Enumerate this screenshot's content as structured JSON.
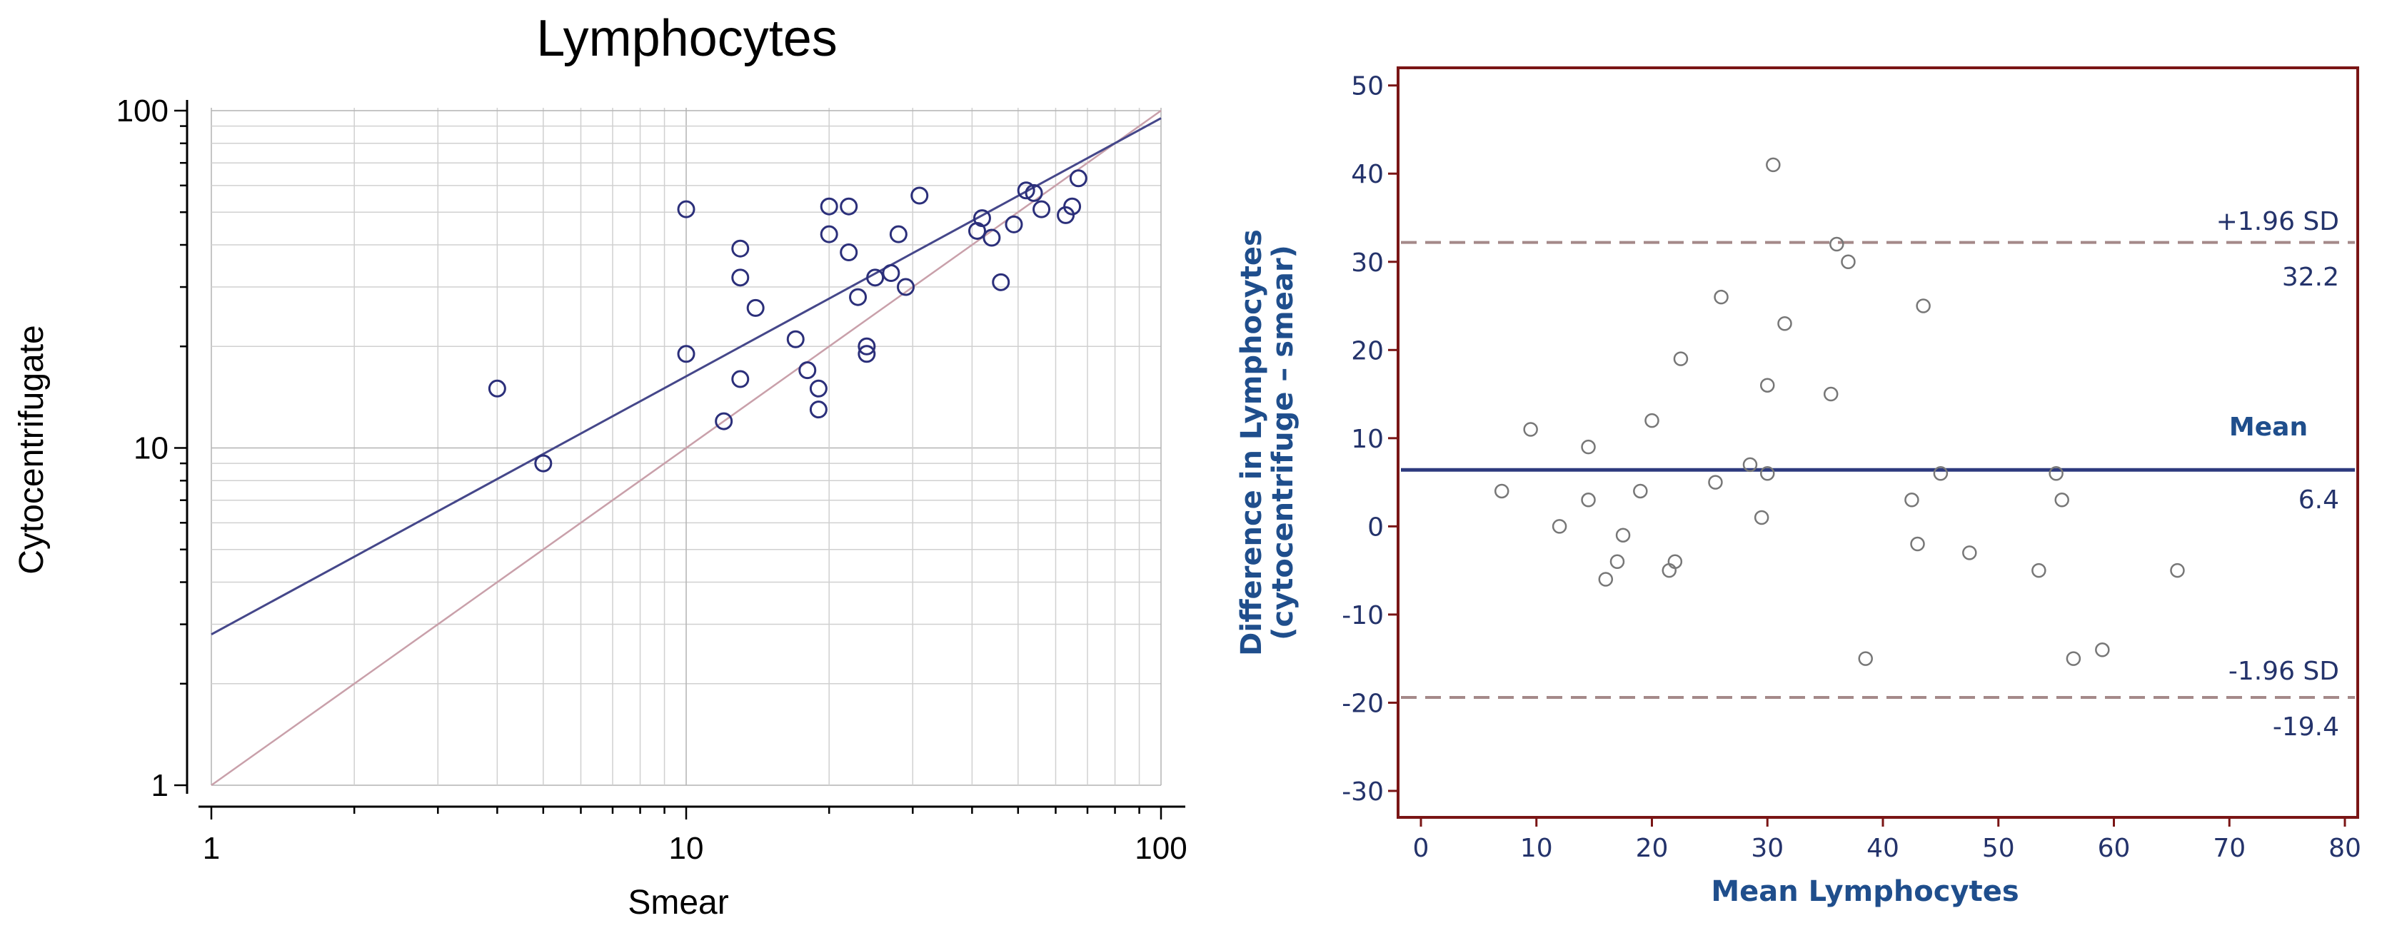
{
  "colors": {
    "scatter_marker": "#2b2f7a",
    "regression_line": "#45478a",
    "identity_line": "#c9a0aa",
    "grid": "#d0d0d0",
    "ba_frame": "#7a1515",
    "ba_axis_text": "#24336b",
    "ba_label": "#1f4e8c",
    "ba_mean_line": "#2d3a7e",
    "ba_sd_line": "#a48989",
    "ba_marker": "#777777"
  },
  "chart_data": [
    {
      "type": "scatter",
      "title": "Lymphocytes",
      "xlabel": "Smear",
      "ylabel": "Cytocentrifugate",
      "xscale": "log",
      "yscale": "log",
      "xlim": [
        1,
        100
      ],
      "ylim": [
        1,
        100
      ],
      "xticks": [
        1,
        10,
        100
      ],
      "yticks": [
        1,
        10,
        100
      ],
      "xticklabels": [
        "1",
        "10",
        "100"
      ],
      "yticklabels": [
        "1",
        "10",
        "100"
      ],
      "grid": true,
      "regression_line": {
        "x": [
          1,
          100
        ],
        "y": [
          2.8,
          95
        ]
      },
      "identity_line": {
        "x": [
          1,
          100
        ],
        "y": [
          1,
          100
        ]
      },
      "points": [
        {
          "x": 4,
          "y": 15
        },
        {
          "x": 5,
          "y": 9
        },
        {
          "x": 10,
          "y": 51
        },
        {
          "x": 10,
          "y": 19
        },
        {
          "x": 12,
          "y": 12
        },
        {
          "x": 13,
          "y": 39
        },
        {
          "x": 13,
          "y": 32
        },
        {
          "x": 13,
          "y": 16
        },
        {
          "x": 14,
          "y": 26
        },
        {
          "x": 17,
          "y": 21
        },
        {
          "x": 18,
          "y": 17
        },
        {
          "x": 19,
          "y": 15
        },
        {
          "x": 19,
          "y": 13
        },
        {
          "x": 20,
          "y": 52
        },
        {
          "x": 20,
          "y": 43
        },
        {
          "x": 22,
          "y": 52
        },
        {
          "x": 22,
          "y": 38
        },
        {
          "x": 23,
          "y": 28
        },
        {
          "x": 24,
          "y": 20
        },
        {
          "x": 24,
          "y": 19
        },
        {
          "x": 25,
          "y": 32
        },
        {
          "x": 27,
          "y": 33
        },
        {
          "x": 28,
          "y": 43
        },
        {
          "x": 29,
          "y": 30
        },
        {
          "x": 31,
          "y": 56
        },
        {
          "x": 41,
          "y": 44
        },
        {
          "x": 42,
          "y": 48
        },
        {
          "x": 44,
          "y": 42
        },
        {
          "x": 46,
          "y": 31
        },
        {
          "x": 49,
          "y": 46
        },
        {
          "x": 52,
          "y": 58
        },
        {
          "x": 54,
          "y": 57
        },
        {
          "x": 56,
          "y": 51
        },
        {
          "x": 63,
          "y": 49
        },
        {
          "x": 65,
          "y": 52
        },
        {
          "x": 67,
          "y": 63
        }
      ]
    },
    {
      "type": "scatter",
      "title": "",
      "xlabel": "Mean Lymphocytes",
      "ylabel_line1": "Difference in Lymphocytes",
      "ylabel_line2": "(cytocentrifuge – smear)",
      "xlim": [
        0,
        80
      ],
      "ylim": [
        -33,
        52
      ],
      "xticks": [
        0,
        10,
        20,
        30,
        40,
        50,
        60,
        70,
        80
      ],
      "yticks": [
        -30,
        -20,
        -10,
        0,
        10,
        20,
        30,
        40,
        50
      ],
      "xticklabels": [
        "0",
        "10",
        "20",
        "30",
        "40",
        "50",
        "60",
        "70",
        "80"
      ],
      "yticklabels": [
        "-30",
        "-20",
        "-10",
        "0",
        "10",
        "20",
        "30",
        "40",
        "50"
      ],
      "grid": false,
      "mean": 6.4,
      "upper_loa": 32.2,
      "lower_loa": -19.4,
      "annotations": {
        "upper_label": "+1.96 SD",
        "upper_value": "32.2",
        "mean_label": "Mean",
        "mean_value": "6.4",
        "lower_label": "-1.96 SD",
        "lower_value": "-19.4"
      },
      "points": [
        {
          "x": 7,
          "y": 4
        },
        {
          "x": 9.5,
          "y": 11
        },
        {
          "x": 12,
          "y": 0
        },
        {
          "x": 14.5,
          "y": 9
        },
        {
          "x": 14.5,
          "y": 3
        },
        {
          "x": 16,
          "y": -6
        },
        {
          "x": 17,
          "y": -4
        },
        {
          "x": 17.5,
          "y": -1
        },
        {
          "x": 19,
          "y": 4
        },
        {
          "x": 20,
          "y": 12
        },
        {
          "x": 21.5,
          "y": -5
        },
        {
          "x": 22,
          "y": -4
        },
        {
          "x": 22.5,
          "y": 19
        },
        {
          "x": 25.5,
          "y": 5
        },
        {
          "x": 26,
          "y": 26
        },
        {
          "x": 28.5,
          "y": 7
        },
        {
          "x": 29.5,
          "y": 1
        },
        {
          "x": 30,
          "y": 16
        },
        {
          "x": 30,
          "y": 6
        },
        {
          "x": 30.5,
          "y": 41
        },
        {
          "x": 31.5,
          "y": 23
        },
        {
          "x": 35.5,
          "y": 15
        },
        {
          "x": 36,
          "y": 32
        },
        {
          "x": 37,
          "y": 30
        },
        {
          "x": 38.5,
          "y": -15
        },
        {
          "x": 42.5,
          "y": 3
        },
        {
          "x": 43,
          "y": -2
        },
        {
          "x": 43.5,
          "y": 25
        },
        {
          "x": 45,
          "y": 6
        },
        {
          "x": 47.5,
          "y": -3
        },
        {
          "x": 53.5,
          "y": -5
        },
        {
          "x": 55,
          "y": 6
        },
        {
          "x": 55.5,
          "y": 3
        },
        {
          "x": 56.5,
          "y": -15
        },
        {
          "x": 59,
          "y": -14
        },
        {
          "x": 65.5,
          "y": -5
        }
      ]
    }
  ]
}
